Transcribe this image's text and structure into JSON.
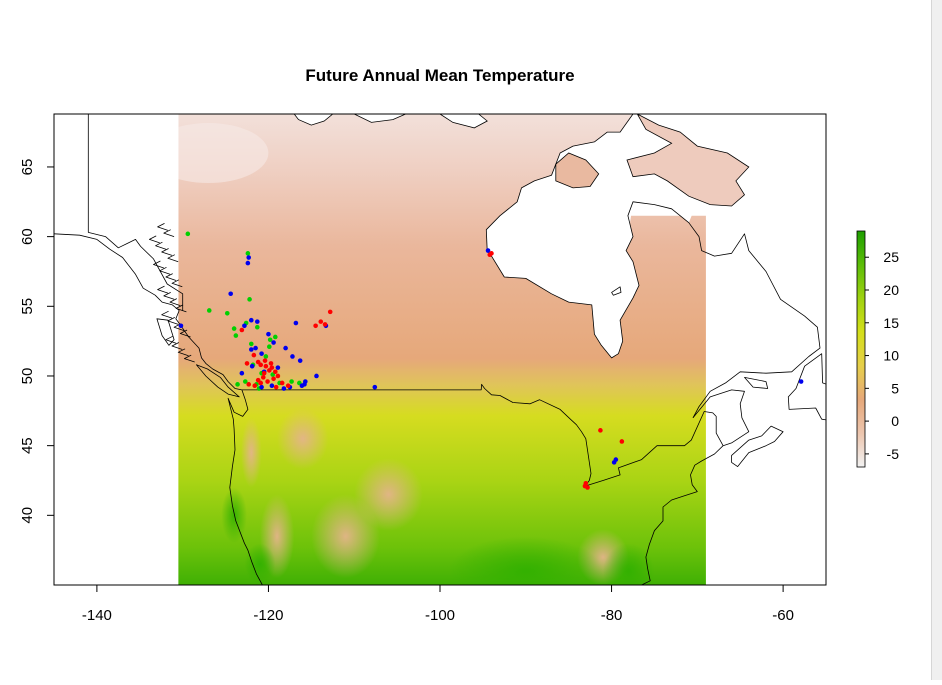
{
  "map": {
    "title": "Future Annual Mean Temperature",
    "projection": "longitude-latitude",
    "x_range": [
      -145,
      -55
    ],
    "y_range": [
      35,
      68.8
    ],
    "x_ticks": [
      -140,
      -120,
      -100,
      -80,
      -60
    ],
    "y_ticks": [
      40,
      45,
      50,
      55,
      60,
      65
    ],
    "x_tick_labels": [
      "-140",
      "-120",
      "-100",
      "-80",
      "-60"
    ],
    "y_tick_labels": [
      "40",
      "45",
      "50",
      "55",
      "60",
      "65"
    ],
    "raster_extent": {
      "lon_min": -130.5,
      "lon_max": -69,
      "lat_min": 35,
      "lat_max": 68.8
    }
  },
  "legend": {
    "position": "right",
    "range": [
      -7,
      29
    ],
    "ticks": [
      -5,
      0,
      5,
      10,
      15,
      20,
      25
    ],
    "tick_labels": [
      "-5",
      "0",
      "5",
      "10",
      "15",
      "20",
      "25"
    ],
    "colors": [
      "#f2f2f2",
      "#ecc5ae",
      "#e6a87a",
      "#e6cf4a",
      "#d4df1a",
      "#9fd210",
      "#5cbd08",
      "#1e9f00"
    ]
  },
  "series_colors": {
    "green": "#00d000",
    "blue": "#0000ee",
    "red": "#ff0000"
  },
  "points": {
    "green": [
      [
        -129.4,
        60.2
      ],
      [
        -122.4,
        58.8
      ],
      [
        -126.9,
        54.7
      ],
      [
        -124.8,
        54.5
      ],
      [
        -122.2,
        55.5
      ],
      [
        -121.3,
        53.5
      ],
      [
        -123.8,
        52.9
      ],
      [
        -122.6,
        53.8
      ],
      [
        -119.8,
        52.6
      ],
      [
        -119.2,
        52.8
      ],
      [
        -121.8,
        50.8
      ],
      [
        -122.7,
        49.6
      ],
      [
        -118.7,
        49.5
      ],
      [
        -117.3,
        49.6
      ],
      [
        -120.3,
        51.4
      ],
      [
        -121.4,
        49.4
      ],
      [
        -119.5,
        50.1
      ],
      [
        -123.6,
        49.4
      ],
      [
        -122.0,
        52.3
      ],
      [
        -124.0,
        53.4
      ],
      [
        -119.9,
        52.1
      ],
      [
        -121.1,
        49.1
      ],
      [
        -116.4,
        49.5
      ],
      [
        -120.8,
        50.2
      ]
    ],
    "blue": [
      [
        -124.4,
        55.9
      ],
      [
        -122.3,
        58.5
      ],
      [
        -122.4,
        58.1
      ],
      [
        -122.0,
        54.0
      ],
      [
        -121.3,
        53.9
      ],
      [
        -122.8,
        53.6
      ],
      [
        -120.0,
        53.0
      ],
      [
        -121.5,
        52.0
      ],
      [
        -122.0,
        51.9
      ],
      [
        -120.8,
        51.6
      ],
      [
        -119.4,
        52.4
      ],
      [
        -118.0,
        52.0
      ],
      [
        -117.2,
        51.4
      ],
      [
        -116.3,
        51.1
      ],
      [
        -120.8,
        49.2
      ],
      [
        -119.6,
        49.3
      ],
      [
        -118.2,
        49.1
      ],
      [
        -117.5,
        49.2
      ],
      [
        -116.1,
        49.3
      ],
      [
        -115.7,
        49.6
      ],
      [
        -115.8,
        49.4
      ],
      [
        -114.4,
        50.0
      ],
      [
        -107.6,
        49.2
      ],
      [
        -116.8,
        53.8
      ],
      [
        -113.3,
        53.6
      ],
      [
        -130.2,
        53.6
      ],
      [
        -94.4,
        59.0
      ],
      [
        -79.7,
        43.8
      ],
      [
        -79.5,
        44.0
      ],
      [
        -57.9,
        49.6
      ],
      [
        -121.9,
        50.7
      ],
      [
        -118.9,
        50.6
      ],
      [
        -120.5,
        50.3
      ],
      [
        -123.1,
        50.2
      ]
    ],
    "red": [
      [
        -123.1,
        53.3
      ],
      [
        -121.7,
        51.5
      ],
      [
        -121.2,
        51.0
      ],
      [
        -120.9,
        50.8
      ],
      [
        -120.4,
        51.1
      ],
      [
        -120.3,
        50.7
      ],
      [
        -119.9,
        50.4
      ],
      [
        -120.5,
        50.2
      ],
      [
        -119.6,
        50.6
      ],
      [
        -119.2,
        50.3
      ],
      [
        -118.9,
        50.0
      ],
      [
        -119.4,
        49.8
      ],
      [
        -120.1,
        49.6
      ],
      [
        -120.9,
        49.5
      ],
      [
        -121.6,
        49.3
      ],
      [
        -122.3,
        49.4
      ],
      [
        -119.1,
        49.2
      ],
      [
        -118.4,
        49.5
      ],
      [
        -117.7,
        49.3
      ],
      [
        -121.2,
        49.7
      ],
      [
        -122.5,
        50.9
      ],
      [
        -114.5,
        53.6
      ],
      [
        -113.9,
        53.9
      ],
      [
        -112.8,
        54.6
      ],
      [
        -113.4,
        53.7
      ],
      [
        -94.2,
        58.7
      ],
      [
        -94.0,
        58.8
      ],
      [
        -83.0,
        42.3
      ],
      [
        -83.1,
        42.1
      ],
      [
        -82.8,
        42.0
      ],
      [
        -81.3,
        46.1
      ],
      [
        -78.8,
        45.3
      ],
      [
        -120.6,
        49.9
      ],
      [
        -119.7,
        50.9
      ]
    ]
  },
  "geo": {
    "us_canada_border": [
      [
        -123.1,
        49.0
      ],
      [
        -95.2,
        49.0
      ],
      [
        -95.15,
        49.4
      ],
      [
        -94.8,
        49.1
      ],
      [
        -94.0,
        48.65
      ],
      [
        -93.0,
        48.6
      ],
      [
        -91.5,
        48.1
      ],
      [
        -89.5,
        48.0
      ],
      [
        -88.4,
        48.3
      ],
      [
        -86.0,
        47.6
      ],
      [
        -84.8,
        46.9
      ],
      [
        -84.1,
        46.5
      ],
      [
        -83.5,
        46.0
      ],
      [
        -83.0,
        45.5
      ],
      [
        -82.4,
        43.0
      ],
      [
        -82.6,
        42.5
      ],
      [
        -83.1,
        42.1
      ],
      [
        -81.0,
        42.5
      ],
      [
        -79.0,
        42.9
      ],
      [
        -79.2,
        43.4
      ],
      [
        -76.5,
        44.0
      ],
      [
        -74.7,
        45.0
      ],
      [
        -71.5,
        45.0
      ],
      [
        -70.7,
        45.4
      ],
      [
        -69.2,
        47.45
      ],
      [
        -68.2,
        47.35
      ],
      [
        -67.8,
        47.1
      ],
      [
        -67.8,
        45.9
      ],
      [
        -67.0,
        45.0
      ]
    ],
    "alaska_border": [
      [
        -141,
        69
      ],
      [
        -141,
        60.3
      ],
      [
        -139,
        60.0
      ],
      [
        -137.5,
        59.2
      ],
      [
        -136.5,
        59.5
      ],
      [
        -135.5,
        59.8
      ],
      [
        -134.9,
        59.3
      ],
      [
        -133.4,
        58.4
      ],
      [
        -131.8,
        56.6
      ],
      [
        -130.0,
        55.9
      ],
      [
        -130.0,
        54.7
      ]
    ],
    "alaska_coast": [
      [
        -145,
        60.2
      ],
      [
        -142,
        60.1
      ],
      [
        -140,
        59.8
      ],
      [
        -138.5,
        59.1
      ],
      [
        -137,
        58.5
      ],
      [
        -136.5,
        58.1
      ],
      [
        -135.5,
        57.3
      ],
      [
        -134.6,
        56.3
      ],
      [
        -133.2,
        55.8
      ],
      [
        -132.4,
        55.3
      ],
      [
        -131.2,
        55.1
      ],
      [
        -130.4,
        54.7
      ]
    ],
    "bc_coast": [
      [
        -130.4,
        54.7
      ],
      [
        -130.8,
        54.1
      ],
      [
        -130.2,
        53.6
      ],
      [
        -129.3,
        52.8
      ],
      [
        -128.1,
        52.0
      ],
      [
        -127.8,
        51.3
      ],
      [
        -127.3,
        50.9
      ],
      [
        -126.5,
        50.5
      ],
      [
        -125.3,
        50.1
      ],
      [
        -124.7,
        49.6
      ],
      [
        -123.9,
        49.1
      ],
      [
        -123.1,
        49.0
      ]
    ],
    "vancouver_island": [
      [
        -128.4,
        50.8
      ],
      [
        -127.1,
        50.5
      ],
      [
        -125.6,
        49.9
      ],
      [
        -124.7,
        49.2
      ],
      [
        -123.4,
        48.5
      ],
      [
        -124.7,
        48.7
      ],
      [
        -125.9,
        49.2
      ],
      [
        -127.3,
        50.0
      ],
      [
        -128.4,
        50.8
      ]
    ],
    "haida_gwaii": [
      [
        -133.0,
        54.1
      ],
      [
        -131.7,
        54.0
      ],
      [
        -131.0,
        52.6
      ],
      [
        -131.6,
        52.2
      ],
      [
        -132.4,
        52.9
      ],
      [
        -133.0,
        54.1
      ]
    ],
    "west_coast_us": [
      [
        -123.1,
        49.0
      ],
      [
        -122.7,
        48.3
      ],
      [
        -122.4,
        47.6
      ],
      [
        -123.0,
        47.1
      ],
      [
        -124.0,
        47.4
      ],
      [
        -124.7,
        48.4
      ],
      [
        -124.1,
        46.9
      ],
      [
        -124.0,
        46.2
      ],
      [
        -123.9,
        44.7
      ],
      [
        -124.2,
        43.5
      ],
      [
        -124.5,
        42.0
      ],
      [
        -124.2,
        40.7
      ],
      [
        -123.8,
        39.6
      ],
      [
        -122.8,
        38.0
      ],
      [
        -122.4,
        37.5
      ],
      [
        -121.9,
        36.6
      ],
      [
        -121.4,
        35.8
      ],
      [
        -120.7,
        35.0
      ]
    ],
    "east_coast_us": [
      [
        -67.0,
        45.0
      ],
      [
        -68.0,
        44.4
      ],
      [
        -69.5,
        43.9
      ],
      [
        -70.3,
        43.6
      ],
      [
        -70.8,
        42.9
      ],
      [
        -70.6,
        42.2
      ],
      [
        -70.0,
        41.7
      ],
      [
        -71.5,
        41.4
      ],
      [
        -73.0,
        41.1
      ],
      [
        -74.0,
        40.6
      ],
      [
        -74.0,
        39.6
      ],
      [
        -75.0,
        38.9
      ],
      [
        -75.6,
        37.9
      ],
      [
        -76.0,
        37.0
      ],
      [
        -75.8,
        36.2
      ],
      [
        -75.5,
        35.3
      ],
      [
        -76.5,
        35.0
      ]
    ],
    "hudson_bay_coast": [
      [
        -94.5,
        59.0
      ],
      [
        -94.0,
        58.6
      ],
      [
        -92.5,
        57.1
      ],
      [
        -90.0,
        57.0
      ],
      [
        -87.0,
        55.9
      ],
      [
        -85.0,
        55.3
      ],
      [
        -82.3,
        55.1
      ],
      [
        -82.0,
        53.0
      ],
      [
        -81.2,
        52.2
      ],
      [
        -80.0,
        51.3
      ],
      [
        -79.2,
        51.6
      ],
      [
        -78.7,
        52.5
      ],
      [
        -79.0,
        54.0
      ],
      [
        -77.5,
        55.6
      ],
      [
        -76.8,
        56.5
      ],
      [
        -77.5,
        58.2
      ],
      [
        -78.3,
        59.0
      ],
      [
        -77.5,
        60.0
      ],
      [
        -78.1,
        61.5
      ],
      [
        -77.5,
        62.5
      ],
      [
        -75.0,
        62.3
      ],
      [
        -73.0,
        62.0
      ],
      [
        -71.0,
        61.0
      ],
      [
        -69.8,
        60.0
      ],
      [
        -69.5,
        59.0
      ],
      [
        -68.0,
        58.6
      ],
      [
        -66.0,
        58.8
      ],
      [
        -64.5,
        60.2
      ],
      [
        -64.0,
        59.0
      ],
      [
        -62.0,
        57.5
      ],
      [
        -60.3,
        55.5
      ],
      [
        -57.5,
        54.3
      ],
      [
        -56.0,
        53.5
      ],
      [
        -55.7,
        52.0
      ],
      [
        -57.0,
        51.4
      ],
      [
        -59.0,
        50.3
      ],
      [
        -62.0,
        50.2
      ],
      [
        -65.0,
        50.3
      ],
      [
        -66.7,
        49.5
      ],
      [
        -68.5,
        48.9
      ],
      [
        -69.8,
        47.8
      ],
      [
        -70.5,
        47.0
      ]
    ],
    "arctic_coast": [
      [
        -94.5,
        59.0
      ],
      [
        -94.6,
        60.5
      ],
      [
        -93.0,
        61.5
      ],
      [
        -91.0,
        62.5
      ],
      [
        -90.5,
        63.5
      ],
      [
        -89.0,
        64.0
      ],
      [
        -87.0,
        64.4
      ],
      [
        -86.0,
        66.0
      ],
      [
        -84.5,
        66.5
      ],
      [
        -82.0,
        66.8
      ],
      [
        -80.5,
        67.5
      ],
      [
        -79.0,
        67.5
      ],
      [
        -77.5,
        68.8
      ]
    ],
    "southampton_island": [
      [
        -86.5,
        64.0
      ],
      [
        -84.5,
        63.5
      ],
      [
        -82.5,
        63.6
      ],
      [
        -81.5,
        64.5
      ],
      [
        -83.0,
        65.5
      ],
      [
        -85.0,
        66.0
      ],
      [
        -86.5,
        65.2
      ],
      [
        -86.5,
        64.0
      ]
    ],
    "baffin_south": [
      [
        -77.0,
        68.8
      ],
      [
        -74.5,
        68.0
      ],
      [
        -72.0,
        67.5
      ],
      [
        -70.0,
        66.5
      ],
      [
        -66.5,
        66.0
      ],
      [
        -64.0,
        65.0
      ],
      [
        -65.5,
        64.0
      ],
      [
        -64.5,
        63.0
      ],
      [
        -66.0,
        62.2
      ],
      [
        -68.5,
        62.3
      ],
      [
        -71.0,
        62.9
      ],
      [
        -73.5,
        64.0
      ],
      [
        -75.0,
        64.5
      ],
      [
        -77.5,
        64.3
      ],
      [
        -78.2,
        65.5
      ],
      [
        -75.0,
        66.0
      ],
      [
        -73.0,
        66.7
      ],
      [
        -76.0,
        67.7
      ],
      [
        -77.0,
        68.8
      ]
    ],
    "arctic_island_a": [
      [
        -100.0,
        68.8
      ],
      [
        -98.5,
        68.2
      ],
      [
        -96.0,
        67.8
      ],
      [
        -94.5,
        68.3
      ],
      [
        -95.5,
        68.8
      ]
    ],
    "arctic_island_b": [
      [
        -110.0,
        68.8
      ],
      [
        -108.0,
        68.2
      ],
      [
        -105.5,
        68.4
      ],
      [
        -104.0,
        68.8
      ]
    ],
    "arctic_island_c": [
      [
        -117.0,
        68.8
      ],
      [
        -116.5,
        68.4
      ],
      [
        -115.0,
        68.0
      ],
      [
        -113.5,
        68.3
      ],
      [
        -112.5,
        68.8
      ]
    ],
    "newfoundland": [
      [
        -59.3,
        47.6
      ],
      [
        -59.4,
        48.5
      ],
      [
        -58.5,
        49.1
      ],
      [
        -57.5,
        50.7
      ],
      [
        -55.5,
        51.6
      ],
      [
        -55.4,
        49.5
      ],
      [
        -53.6,
        49.1
      ],
      [
        -52.7,
        47.6
      ],
      [
        -53.5,
        46.7
      ],
      [
        -55.5,
        46.9
      ],
      [
        -56.2,
        47.7
      ],
      [
        -59.3,
        47.6
      ]
    ],
    "nova_scotia": [
      [
        -66.0,
        43.8
      ],
      [
        -65.3,
        43.5
      ],
      [
        -64.0,
        44.5
      ],
      [
        -62.0,
        45.0
      ],
      [
        -61.0,
        45.3
      ],
      [
        -60.0,
        46.0
      ],
      [
        -61.4,
        46.4
      ],
      [
        -62.5,
        45.7
      ],
      [
        -64.0,
        45.4
      ],
      [
        -66.0,
        44.3
      ],
      [
        -66.0,
        43.8
      ]
    ],
    "gulf_coast": [
      [
        -70.5,
        47.0
      ],
      [
        -68.5,
        48.5
      ],
      [
        -66.0,
        49.0
      ],
      [
        -64.5,
        48.9
      ],
      [
        -65.0,
        48.0
      ],
      [
        -64.8,
        47.0
      ],
      [
        -64.0,
        46.0
      ],
      [
        -66.0,
        45.2
      ],
      [
        -67.0,
        45.0
      ]
    ],
    "anticosti": [
      [
        -64.5,
        49.9
      ],
      [
        -62.0,
        49.6
      ],
      [
        -61.8,
        49.1
      ],
      [
        -63.5,
        49.2
      ],
      [
        -64.5,
        49.9
      ]
    ],
    "belcher_islands": [
      [
        -80.0,
        56.0
      ],
      [
        -79.0,
        56.4
      ],
      [
        -78.9,
        56.0
      ],
      [
        -79.8,
        55.8
      ],
      [
        -80.0,
        56.0
      ]
    ]
  }
}
